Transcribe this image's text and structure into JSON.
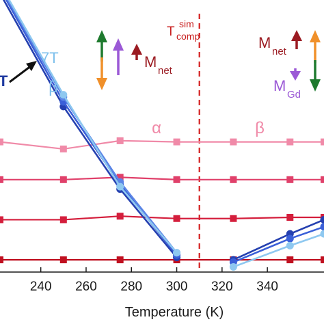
{
  "chart_data": {
    "type": "line",
    "xlabel": "Temperature (K)",
    "xlim": [
      222,
      365
    ],
    "ylim": [
      0,
      100
    ],
    "xticks": [
      240,
      260,
      280,
      300,
      320,
      340
    ],
    "tcomp_line": {
      "x": 310,
      "label": "T",
      "sup": "sim",
      "sub": "comp"
    },
    "region_labels": [
      {
        "text": "α",
        "x": 229,
        "y": 52
      },
      {
        "text": "β",
        "x": 318,
        "y": 52
      },
      {
        "text": "β",
        "x": 246,
        "y": 70
      }
    ],
    "field_label": {
      "text": "7T",
      "x": 247,
      "y": 80
    },
    "field_label_left": {
      "text": "T",
      "x": 224,
      "y": 70
    },
    "annotations": {
      "mnet_left": {
        "main": "M",
        "sub": "net"
      },
      "mnet_right": {
        "main": "M",
        "sub": "net"
      },
      "mgd_right": {
        "main": "M",
        "sub": "Gd"
      }
    },
    "arrow_colors": {
      "green": "#1e7a2e",
      "orange": "#f0902a",
      "purple": "#9b59d6",
      "darkred": "#9b1b22",
      "black": "#111111"
    },
    "series": [
      {
        "color": "#f08aa8",
        "marker": "square",
        "x": [
          222,
          250,
          275,
          300,
          325,
          350,
          365
        ],
        "y": [
          52,
          49,
          52.5,
          52,
          52,
          52,
          52
        ]
      },
      {
        "color": "#e0406a",
        "marker": "square",
        "x": [
          222,
          250,
          275,
          300,
          325,
          350,
          365
        ],
        "y": [
          36,
          36,
          37,
          36,
          36,
          36,
          36
        ]
      },
      {
        "color": "#d41e3c",
        "marker": "square",
        "x": [
          222,
          250,
          275,
          300,
          325,
          350,
          365
        ],
        "y": [
          19,
          19,
          20.5,
          19.5,
          19.5,
          20,
          20
        ]
      },
      {
        "color": "#c01020",
        "marker": "square",
        "x": [
          222,
          250,
          275,
          300,
          325,
          350,
          365
        ],
        "y": [
          2,
          2,
          2,
          2,
          2,
          2,
          2
        ]
      },
      {
        "color": "#2540b0",
        "marker": "circle",
        "x": [
          222,
          250,
          275,
          300
        ],
        "y": [
          115,
          67,
          32,
          3
        ]
      },
      {
        "color": "#3a5fd8",
        "marker": "circle",
        "x": [
          222,
          250,
          275,
          300
        ],
        "y": [
          117,
          69,
          34,
          4
        ]
      },
      {
        "color": "#5b85e6",
        "marker": "circle",
        "x": [
          222,
          250,
          275,
          300
        ],
        "y": [
          118,
          71,
          35,
          5
        ]
      },
      {
        "color": "#8ec8f0",
        "marker": "circle",
        "x": [
          222,
          250,
          275,
          300
        ],
        "y": [
          119,
          72,
          33,
          5
        ]
      },
      {
        "color": "#2540b0",
        "marker": "circle",
        "x": [
          325,
          350,
          365
        ],
        "y": [
          2,
          13,
          19
        ]
      },
      {
        "color": "#3a5fd8",
        "marker": "circle",
        "x": [
          325,
          350,
          365
        ],
        "y": [
          1,
          11,
          16
        ]
      },
      {
        "color": "#8ec8f0",
        "marker": "circle",
        "x": [
          325,
          350,
          365
        ],
        "y": [
          -1,
          8,
          13
        ]
      }
    ]
  }
}
